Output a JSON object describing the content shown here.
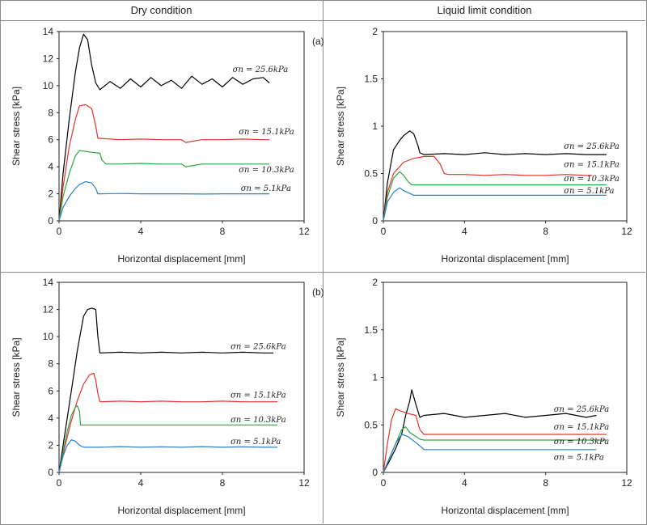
{
  "headers": {
    "left": "Dry condition",
    "right": "Liquid limit condition"
  },
  "panel_labels": {
    "a": "(a)",
    "b": "(b)"
  },
  "chart_data": [
    {
      "type": "line",
      "xlabel": "Horizontal displacement [mm]",
      "ylabel": "Shear stress [kPa]",
      "xlim": [
        0,
        12
      ],
      "ylim": [
        0,
        14
      ],
      "xticks": [
        "0",
        "4",
        "8",
        "12"
      ],
      "yticks": [
        "0",
        "2",
        "4",
        "6",
        "8",
        "10",
        "12",
        "14"
      ],
      "annotations": [
        {
          "text": "σn = 25.6kPa",
          "x": 8.5,
          "y": 11.0
        },
        {
          "text": "σn = 15.1kPa",
          "x": 8.8,
          "y": 6.4
        },
        {
          "text": "σn = 10.3kPa",
          "x": 8.8,
          "y": 3.6
        },
        {
          "text": "σn = 5.1kPa",
          "x": 8.9,
          "y": 2.2
        }
      ],
      "series": [
        {
          "color": "#000000",
          "x": [
            0,
            0.2,
            0.5,
            0.8,
            1.0,
            1.2,
            1.4,
            1.6,
            1.8,
            2.0,
            2.5,
            3.0,
            3.5,
            4.0,
            4.5,
            5.0,
            5.5,
            6.0,
            6.5,
            7.0,
            7.5,
            8.0,
            8.5,
            9.0,
            9.5,
            10.0,
            10.3
          ],
          "y": [
            0,
            3.5,
            7.5,
            11.0,
            12.8,
            13.8,
            13.4,
            11.5,
            10.2,
            9.7,
            10.3,
            9.8,
            10.5,
            9.9,
            10.6,
            10.0,
            10.4,
            9.8,
            10.7,
            10.1,
            10.5,
            9.9,
            10.6,
            10.1,
            10.5,
            10.6,
            10.2
          ]
        },
        {
          "color": "#e8312b",
          "x": [
            0,
            0.2,
            0.5,
            0.8,
            1.0,
            1.3,
            1.6,
            1.8,
            1.9,
            2.0,
            3.0,
            4.0,
            5.0,
            6.0,
            6.2,
            7.0,
            8.0,
            9.0,
            10.0,
            10.3
          ],
          "y": [
            0,
            2.5,
            5.5,
            7.5,
            8.5,
            8.6,
            8.3,
            7.0,
            6.1,
            6.1,
            6.0,
            6.05,
            6.0,
            6.0,
            5.8,
            6.0,
            6.0,
            6.05,
            6.0,
            6.0
          ]
        },
        {
          "color": "#2aa840",
          "x": [
            0,
            0.2,
            0.5,
            0.8,
            1.0,
            1.5,
            2.0,
            2.1,
            2.3,
            3.0,
            4.0,
            5.0,
            6.0,
            6.2,
            7.0,
            8.0,
            9.0,
            10.3
          ],
          "y": [
            0,
            1.8,
            3.5,
            4.8,
            5.2,
            5.1,
            5.0,
            4.5,
            4.2,
            4.2,
            4.25,
            4.2,
            4.2,
            4.0,
            4.2,
            4.2,
            4.2,
            4.2
          ]
        },
        {
          "color": "#2b80c8",
          "x": [
            0,
            0.2,
            0.5,
            0.8,
            1.0,
            1.3,
            1.6,
            1.8,
            1.9,
            2.0,
            3.0,
            4.0,
            5.0,
            6.0,
            7.0,
            8.0,
            9.0,
            10.3
          ],
          "y": [
            0,
            1.0,
            1.8,
            2.4,
            2.7,
            2.9,
            2.8,
            2.4,
            2.0,
            2.0,
            2.02,
            2.0,
            2.0,
            2.0,
            1.98,
            2.0,
            2.0,
            2.0
          ]
        }
      ]
    },
    {
      "type": "line",
      "xlabel": "Horizontal displacement [mm]",
      "ylabel": "Shear stress [kPa]",
      "xlim": [
        0,
        12
      ],
      "ylim": [
        0,
        2
      ],
      "xticks": [
        "0",
        "4",
        "8",
        "12"
      ],
      "yticks": [
        "0",
        "0.5",
        "1",
        "1.5",
        "2"
      ],
      "annotations": [
        {
          "text": "σn = 25.6kPa",
          "x": 8.9,
          "y": 0.76
        },
        {
          "text": "σn = 15.1kPa",
          "x": 8.9,
          "y": 0.57
        },
        {
          "text": "σn = 10.3kPa",
          "x": 8.9,
          "y": 0.42
        },
        {
          "text": "σn = 5.1kPa",
          "x": 8.9,
          "y": 0.29
        }
      ],
      "series": [
        {
          "color": "#000000",
          "x": [
            0,
            0.2,
            0.5,
            0.8,
            1.0,
            1.3,
            1.5,
            1.7,
            1.8,
            2.0,
            3.0,
            4.0,
            5.0,
            6.0,
            7.0,
            8.0,
            9.0,
            10.0,
            11.0
          ],
          "y": [
            0,
            0.4,
            0.75,
            0.85,
            0.9,
            0.95,
            0.92,
            0.8,
            0.72,
            0.7,
            0.71,
            0.7,
            0.72,
            0.7,
            0.71,
            0.7,
            0.71,
            0.7,
            0.7
          ]
        },
        {
          "color": "#e8312b",
          "x": [
            0,
            0.2,
            0.5,
            1.0,
            1.5,
            2.0,
            2.5,
            2.8,
            3.0,
            3.2,
            4.0,
            5.0,
            6.0,
            7.0,
            8.0,
            9.0,
            10.0,
            10.3
          ],
          "y": [
            0,
            0.3,
            0.5,
            0.62,
            0.66,
            0.68,
            0.68,
            0.6,
            0.5,
            0.49,
            0.49,
            0.48,
            0.49,
            0.48,
            0.48,
            0.49,
            0.48,
            0.48
          ]
        },
        {
          "color": "#2aa840",
          "x": [
            0,
            0.2,
            0.5,
            0.8,
            1.0,
            1.2,
            1.4,
            2.0,
            3.0,
            4.0,
            6.0,
            8.0,
            10.0,
            11.0
          ],
          "y": [
            0,
            0.25,
            0.45,
            0.52,
            0.48,
            0.42,
            0.38,
            0.38,
            0.38,
            0.38,
            0.38,
            0.38,
            0.38,
            0.38
          ]
        },
        {
          "color": "#2b80c8",
          "x": [
            0,
            0.2,
            0.5,
            0.8,
            1.0,
            1.2,
            1.5,
            2.0,
            3.0,
            4.0,
            6.0,
            8.0,
            10.0,
            11.0
          ],
          "y": [
            0,
            0.2,
            0.3,
            0.35,
            0.32,
            0.3,
            0.27,
            0.27,
            0.27,
            0.27,
            0.27,
            0.27,
            0.27,
            0.27
          ]
        }
      ]
    },
    {
      "type": "line",
      "xlabel": "Horizontal displacement [mm]",
      "ylabel": "Shear stress [kPa]",
      "xlim": [
        0,
        12
      ],
      "ylim": [
        0,
        14
      ],
      "xticks": [
        "0",
        "4",
        "8",
        "12"
      ],
      "yticks": [
        "0",
        "2",
        "4",
        "6",
        "8",
        "10",
        "12",
        "14"
      ],
      "annotations": [
        {
          "text": "σn = 25.6kPa",
          "x": 8.4,
          "y": 9.1
        },
        {
          "text": "σn = 15.1kPa",
          "x": 8.4,
          "y": 5.5
        },
        {
          "text": "σn = 10.3kPa",
          "x": 8.4,
          "y": 3.7
        },
        {
          "text": "σn = 5.1kPa",
          "x": 8.4,
          "y": 2.1
        }
      ],
      "series": [
        {
          "color": "#000000",
          "x": [
            0,
            0.3,
            0.6,
            0.9,
            1.2,
            1.4,
            1.6,
            1.8,
            1.9,
            2.0,
            3.0,
            4.0,
            5.0,
            6.0,
            7.0,
            8.0,
            9.0,
            10.0,
            10.5
          ],
          "y": [
            0,
            3.0,
            6.0,
            9.0,
            11.5,
            12.0,
            12.1,
            12.0,
            10.0,
            8.8,
            8.85,
            8.8,
            8.85,
            8.8,
            8.85,
            8.8,
            8.85,
            8.8,
            8.8
          ]
        },
        {
          "color": "#e8312b",
          "x": [
            0,
            0.3,
            0.6,
            0.9,
            1.2,
            1.5,
            1.7,
            1.8,
            1.9,
            2.0,
            3.0,
            4.0,
            5.0,
            6.0,
            7.0,
            8.0,
            9.0,
            10.0,
            10.7
          ],
          "y": [
            0,
            2.0,
            3.8,
            5.3,
            6.5,
            7.2,
            7.3,
            6.8,
            5.8,
            5.2,
            5.25,
            5.2,
            5.25,
            5.2,
            5.2,
            5.25,
            5.2,
            5.2,
            5.2
          ]
        },
        {
          "color": "#2aa840",
          "x": [
            0,
            0.2,
            0.4,
            0.6,
            0.8,
            0.9,
            1.0,
            1.05,
            2.0,
            4.0,
            6.0,
            8.0,
            10.0,
            10.7
          ],
          "y": [
            0,
            1.5,
            3.0,
            4.2,
            4.8,
            4.9,
            4.5,
            3.5,
            3.5,
            3.5,
            3.5,
            3.5,
            3.5,
            3.5
          ]
        },
        {
          "color": "#2b80c8",
          "x": [
            0,
            0.2,
            0.4,
            0.6,
            0.8,
            1.0,
            1.2,
            2.0,
            3.0,
            4.0,
            5.0,
            6.0,
            7.0,
            8.0,
            9.0,
            10.0,
            10.7
          ],
          "y": [
            0,
            1.2,
            2.0,
            2.4,
            2.3,
            2.0,
            1.85,
            1.85,
            1.9,
            1.85,
            1.88,
            1.85,
            1.9,
            1.85,
            1.88,
            1.85,
            1.85
          ]
        }
      ]
    },
    {
      "type": "line",
      "xlabel": "Horizontal displacement [mm]",
      "ylabel": "Shear stress [kPa]",
      "xlim": [
        0,
        12
      ],
      "ylim": [
        0,
        2
      ],
      "xticks": [
        "0",
        "4",
        "8",
        "12"
      ],
      "yticks": [
        "0",
        "0.5",
        "1",
        "1.5",
        "2"
      ],
      "annotations": [
        {
          "text": "σn = 25.6kPa",
          "x": 8.4,
          "y": 0.64
        },
        {
          "text": "σn = 15.1kPa",
          "x": 8.4,
          "y": 0.45
        },
        {
          "text": "σn = 10.3kPa",
          "x": 8.4,
          "y": 0.3
        },
        {
          "text": "σn = 5.1kPa",
          "x": 8.4,
          "y": 0.13
        }
      ],
      "series": [
        {
          "color": "#000000",
          "x": [
            0,
            0.3,
            0.6,
            0.9,
            1.1,
            1.3,
            1.4,
            1.6,
            1.8,
            2.0,
            3.0,
            4.0,
            5.0,
            6.0,
            7.0,
            8.0,
            9.0,
            10.0,
            10.5
          ],
          "y": [
            0,
            0.12,
            0.25,
            0.4,
            0.6,
            0.75,
            0.87,
            0.72,
            0.58,
            0.6,
            0.62,
            0.58,
            0.6,
            0.62,
            0.58,
            0.6,
            0.62,
            0.58,
            0.6
          ]
        },
        {
          "color": "#e8312b",
          "x": [
            0,
            0.2,
            0.4,
            0.6,
            0.8,
            1.2,
            1.6,
            1.8,
            2.0,
            3.0,
            4.0,
            6.0,
            8.0,
            10.0,
            11.0
          ],
          "y": [
            0,
            0.3,
            0.55,
            0.67,
            0.65,
            0.62,
            0.6,
            0.45,
            0.4,
            0.4,
            0.4,
            0.4,
            0.4,
            0.4,
            0.4
          ]
        },
        {
          "color": "#2aa840",
          "x": [
            0,
            0.3,
            0.6,
            0.9,
            1.1,
            1.3,
            1.6,
            1.8,
            2.0,
            3.0,
            4.0,
            6.0,
            8.0,
            10.0,
            11.0
          ],
          "y": [
            0,
            0.15,
            0.3,
            0.45,
            0.48,
            0.42,
            0.38,
            0.35,
            0.34,
            0.34,
            0.34,
            0.34,
            0.34,
            0.34,
            0.34
          ]
        },
        {
          "color": "#2b80c8",
          "x": [
            0,
            0.3,
            0.6,
            0.9,
            1.2,
            1.5,
            1.8,
            2.0,
            3.0,
            4.0,
            5.0,
            6.0,
            7.0,
            8.0,
            9.0,
            10.0,
            10.5
          ],
          "y": [
            0,
            0.15,
            0.3,
            0.4,
            0.38,
            0.33,
            0.28,
            0.24,
            0.24,
            0.24,
            0.24,
            0.24,
            0.24,
            0.24,
            0.24,
            0.24,
            0.24
          ]
        }
      ]
    }
  ]
}
